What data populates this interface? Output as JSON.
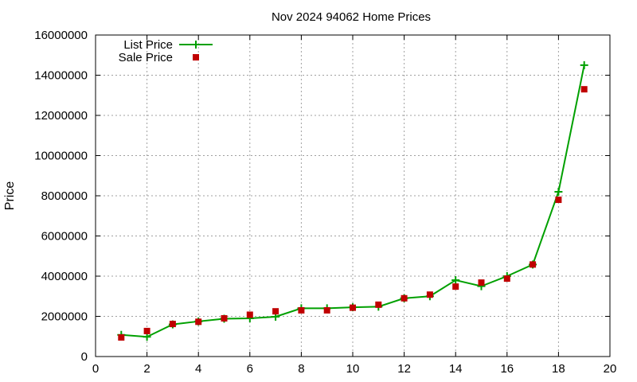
{
  "chart_data": {
    "type": "line",
    "title": "Nov 2024 94062 Home Prices",
    "xlabel": "",
    "ylabel": "Price",
    "xlim": [
      0,
      20
    ],
    "ylim": [
      0,
      16000000
    ],
    "xticks": [
      0,
      2,
      4,
      6,
      8,
      10,
      12,
      14,
      16,
      18,
      20
    ],
    "yticks": [
      0,
      2000000,
      4000000,
      6000000,
      8000000,
      10000000,
      12000000,
      14000000,
      16000000
    ],
    "grid": true,
    "legend_position": "top-left",
    "x": [
      1,
      2,
      3,
      4,
      5,
      6,
      7,
      8,
      9,
      10,
      11,
      12,
      13,
      14,
      15,
      16,
      17,
      18,
      19
    ],
    "series": [
      {
        "name": "List Price",
        "style": "line-with-plus",
        "color": "#00a000",
        "values": [
          1080000,
          980000,
          1600000,
          1750000,
          1880000,
          1900000,
          1980000,
          2400000,
          2400000,
          2450000,
          2480000,
          2900000,
          3000000,
          3800000,
          3500000,
          4000000,
          4580000,
          8200000,
          14500000
        ]
      },
      {
        "name": "Sale Price",
        "style": "points-square",
        "color": "#c00000",
        "values": [
          950000,
          1270000,
          1620000,
          1730000,
          1900000,
          2080000,
          2250000,
          2300000,
          2300000,
          2430000,
          2580000,
          2900000,
          3080000,
          3480000,
          3680000,
          3880000,
          4580000,
          7800000,
          13300000
        ]
      }
    ]
  }
}
